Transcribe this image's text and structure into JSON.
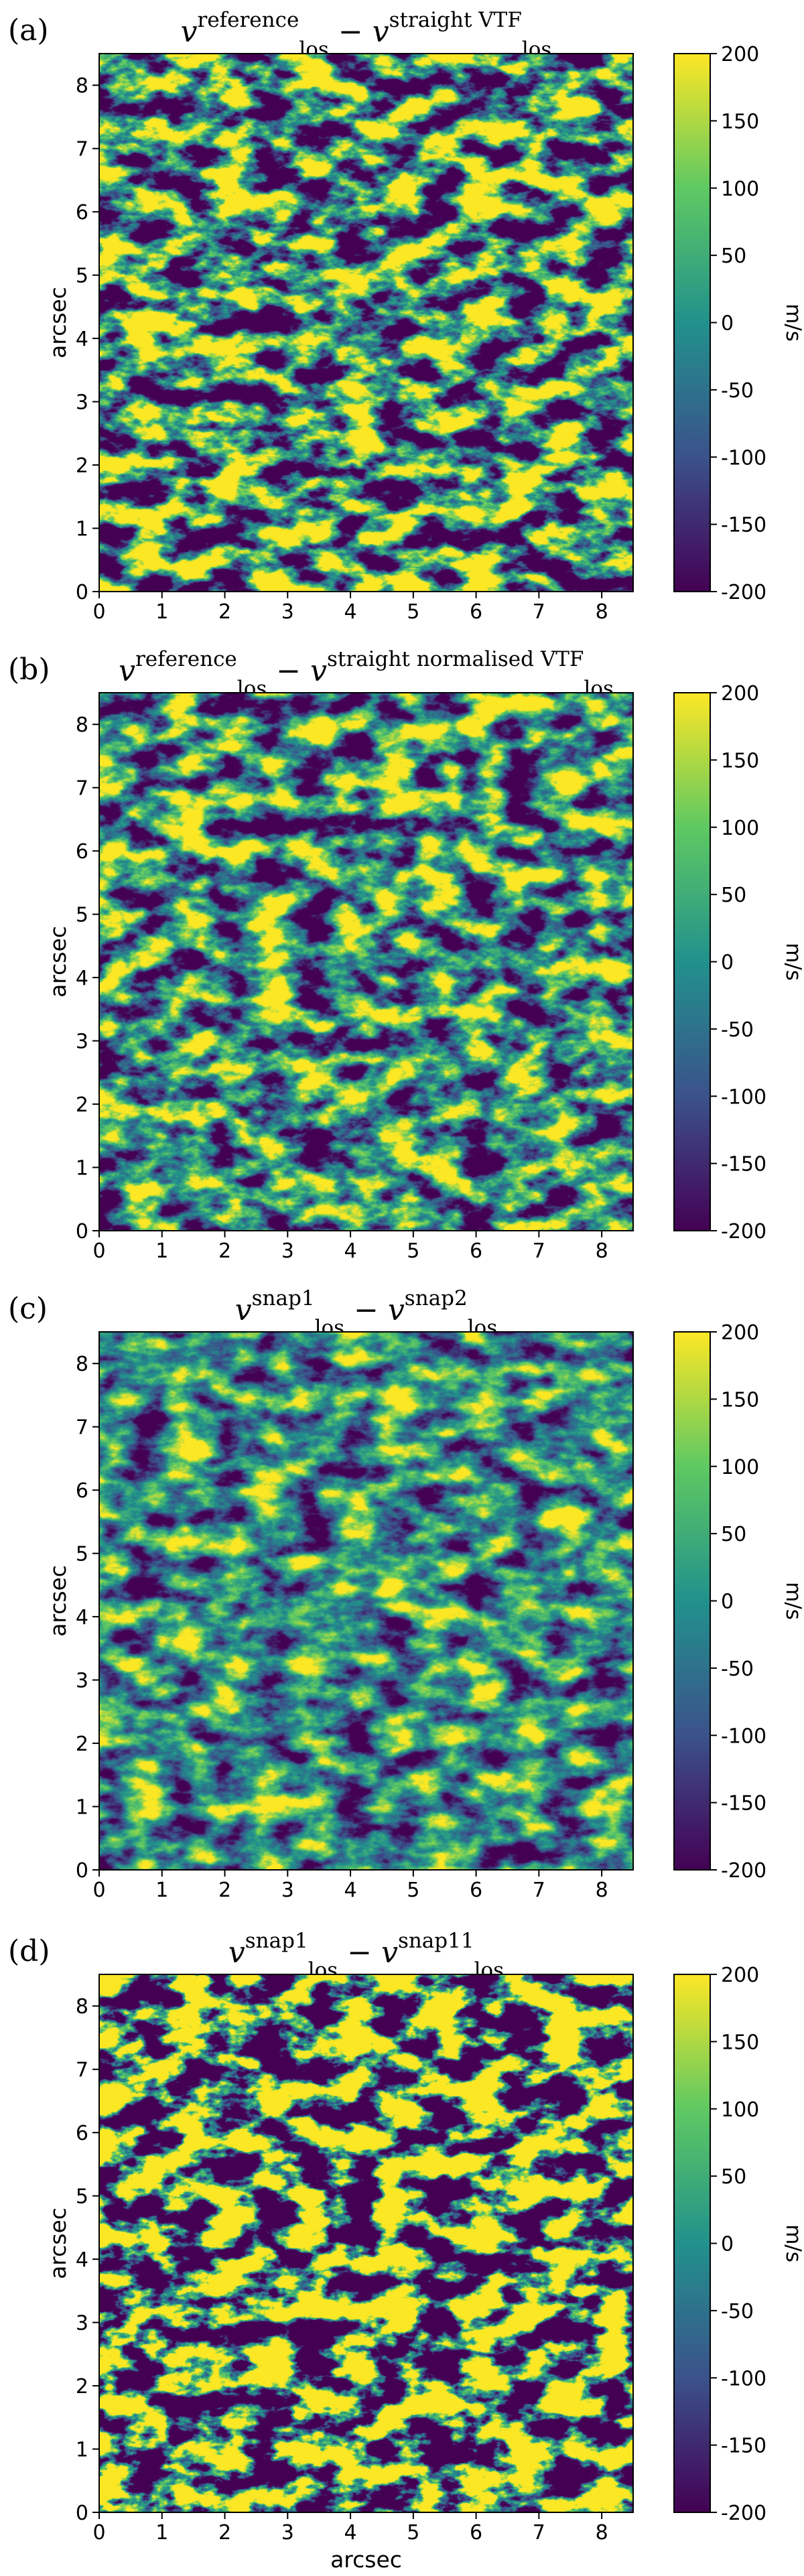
{
  "figure": {
    "shared": {
      "xlabel": "arcsec",
      "ylabel": "arcsec",
      "colorbar_label": "m/s",
      "x_ticks": [
        0,
        1,
        2,
        3,
        4,
        5,
        6,
        7,
        8
      ],
      "y_ticks": [
        0,
        1,
        2,
        3,
        4,
        5,
        6,
        7,
        8
      ],
      "xlim": [
        0,
        8.5
      ],
      "ylim": [
        0,
        8.5
      ],
      "colorbar_ticks": [
        200,
        150,
        100,
        50,
        0,
        -50,
        -100,
        -150,
        -200
      ],
      "colorbar_range": [
        -200,
        200
      ],
      "colormap": [
        "#440154",
        "#3b528b",
        "#21918c",
        "#5ec962",
        "#fde725"
      ]
    },
    "panels": [
      {
        "letter": "(a)",
        "left_base": "v",
        "left_sup": "reference",
        "left_sub": "los",
        "op": "−",
        "right_base": "v",
        "right_sup": "straight VTF",
        "right_sub": "los"
      },
      {
        "letter": "(b)",
        "left_base": "v",
        "left_sup": "reference",
        "left_sub": "los",
        "op": "−",
        "right_base": "v",
        "right_sup": "straight normalised VTF",
        "right_sub": "los"
      },
      {
        "letter": "(c)",
        "left_base": "v",
        "left_sup": "snap1",
        "left_sub": "los",
        "op": "−",
        "right_base": "v",
        "right_sup": "snap2",
        "right_sub": "los"
      },
      {
        "letter": "(d)",
        "left_base": "v",
        "left_sup": "snap1",
        "left_sub": "los",
        "op": "−",
        "right_base": "v",
        "right_sup": "snap11",
        "right_sub": "los"
      }
    ]
  },
  "chart_data": [
    {
      "type": "heatmap",
      "panel": "(a)",
      "title": "v_los^reference − v_los^straight VTF",
      "xlabel": "",
      "ylabel": "arcsec",
      "xlim": [
        0,
        8.5
      ],
      "ylim": [
        0,
        8.5
      ],
      "colorbar_label": "m/s",
      "zlim": [
        -200,
        200
      ],
      "colormap": "viridis",
      "amplitude": 0.55
    },
    {
      "type": "heatmap",
      "panel": "(b)",
      "title": "v_los^reference − v_los^straight normalised VTF",
      "xlabel": "",
      "ylabel": "arcsec",
      "xlim": [
        0,
        8.5
      ],
      "ylim": [
        0,
        8.5
      ],
      "colorbar_label": "m/s",
      "zlim": [
        -200,
        200
      ],
      "colormap": "viridis",
      "amplitude": 0.35
    },
    {
      "type": "heatmap",
      "panel": "(c)",
      "title": "v_los^snap1 − v_los^snap2",
      "xlabel": "",
      "ylabel": "arcsec",
      "xlim": [
        0,
        8.5
      ],
      "ylim": [
        0,
        8.5
      ],
      "colorbar_label": "m/s",
      "zlim": [
        -200,
        200
      ],
      "colormap": "viridis",
      "amplitude": 0.22
    },
    {
      "type": "heatmap",
      "panel": "(d)",
      "title": "v_los^snap1 − v_los^snap11",
      "xlabel": "arcsec",
      "ylabel": "arcsec",
      "xlim": [
        0,
        8.5
      ],
      "ylim": [
        0,
        8.5
      ],
      "colorbar_label": "m/s",
      "zlim": [
        -200,
        200
      ],
      "colormap": "viridis",
      "amplitude": 1.0
    }
  ]
}
